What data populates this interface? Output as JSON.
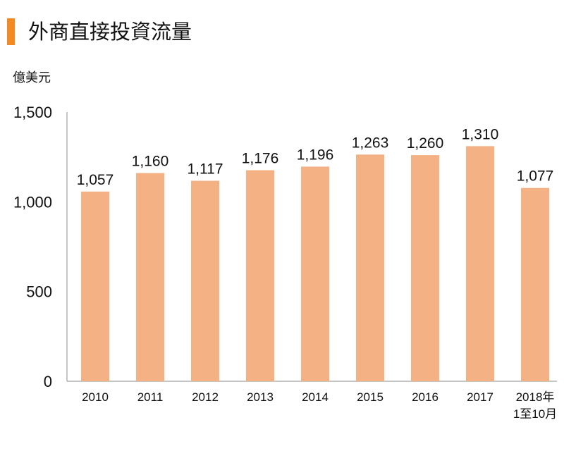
{
  "header": {
    "title": "外商直接投資流量",
    "accent_color": "#f28a22"
  },
  "chart_data": {
    "type": "bar",
    "title": "外商直接投資流量",
    "ylabel": "億美元",
    "xlabel": "",
    "categories": [
      [
        "2010"
      ],
      [
        "2011"
      ],
      [
        "2012"
      ],
      [
        "2013"
      ],
      [
        "2014"
      ],
      [
        "2015"
      ],
      [
        "2016"
      ],
      [
        "2017"
      ],
      [
        "2018年",
        "1至10月"
      ]
    ],
    "values": [
      1057,
      1160,
      1117,
      1176,
      1196,
      1263,
      1260,
      1310,
      1077
    ],
    "value_labels": [
      "1,057",
      "1,160",
      "1,117",
      "1,176",
      "1,196",
      "1,263",
      "1,260",
      "1,310",
      "1,077"
    ],
    "ylim": [
      0,
      1500
    ],
    "yticks": [
      0,
      500,
      1000,
      1500
    ],
    "ytick_labels": [
      "0",
      "500",
      "1,000",
      "1,500"
    ],
    "bar_color": "#f4b183",
    "grid": false,
    "legend": "none"
  }
}
